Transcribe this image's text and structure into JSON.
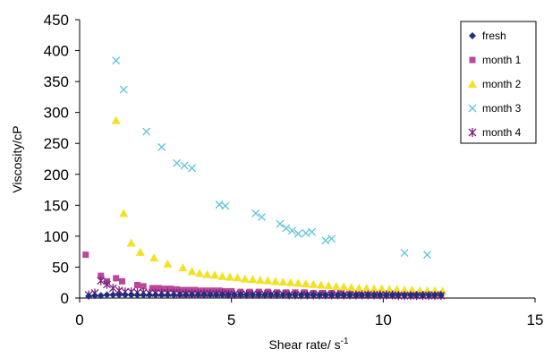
{
  "chart_data": {
    "type": "scatter",
    "xlabel": "Shear rate/ s",
    "xlabel_sup": "-1",
    "ylabel": "Viscosity/cP",
    "xlim": [
      0,
      15
    ],
    "ylim": [
      0,
      450
    ],
    "xticks": [
      0,
      5,
      10,
      15
    ],
    "yticks": [
      0,
      50,
      100,
      150,
      200,
      250,
      300,
      350,
      400,
      450
    ],
    "grid": false,
    "legend_position": "top-right",
    "series": [
      {
        "name": "fresh",
        "marker": "diamond",
        "color": "#1F2F7A",
        "x": [
          0.3,
          0.5,
          0.7,
          0.9,
          1.1,
          1.3,
          1.5,
          1.7,
          1.9,
          2.1,
          2.3,
          2.5,
          2.7,
          2.9,
          3.1,
          3.3,
          3.5,
          3.7,
          3.9,
          4.1,
          4.3,
          4.5,
          4.7,
          4.9,
          5.1,
          5.3,
          5.5,
          5.7,
          5.9,
          6.1,
          6.3,
          6.5,
          6.7,
          6.9,
          7.1,
          7.3,
          7.5,
          7.7,
          7.9,
          8.1,
          8.3,
          8.5,
          8.7,
          8.9,
          9.1,
          9.3,
          9.5,
          9.7,
          9.9,
          10.1,
          10.3,
          10.5,
          10.7,
          10.9,
          11.1,
          11.3,
          11.5,
          11.7,
          11.9
        ],
        "y": [
          3,
          4,
          4,
          5,
          5,
          5,
          5,
          5,
          5,
          5,
          5,
          5,
          5,
          5,
          5,
          5,
          5,
          5,
          5,
          5,
          5,
          5,
          5,
          5,
          5,
          5,
          5,
          5,
          5,
          5,
          5,
          5,
          5,
          5,
          5,
          5,
          5,
          5,
          5,
          5,
          5,
          5,
          5,
          5,
          5,
          5,
          5,
          5,
          5,
          5,
          5,
          5,
          5,
          5,
          5,
          5,
          5,
          5,
          5
        ]
      },
      {
        "name": "month 1",
        "marker": "square",
        "color": "#B9479B",
        "x": [
          0.2,
          0.7,
          0.9,
          1.2,
          1.4,
          1.9,
          2.1,
          2.4,
          2.6,
          2.8,
          3.0,
          3.2,
          3.4,
          3.6,
          3.8,
          4.0,
          4.2,
          4.4,
          4.6,
          4.8,
          5.0,
          5.3,
          5.6,
          5.9,
          6.2,
          6.5,
          6.8,
          7.1,
          7.4,
          7.7,
          8.0,
          8.3,
          8.6,
          8.9,
          9.2,
          9.5,
          9.8,
          10.1,
          10.4,
          10.7,
          11.0,
          11.3,
          11.6,
          11.9
        ],
        "y": [
          70,
          36,
          27,
          32,
          27,
          21,
          19,
          16,
          16,
          15,
          15,
          14,
          13,
          13,
          13,
          12,
          12,
          12,
          12,
          11,
          11,
          10,
          10,
          10,
          10,
          9,
          9,
          9,
          9,
          8,
          8,
          8,
          8,
          8,
          7,
          7,
          7,
          7,
          7,
          7,
          6,
          6,
          6,
          6
        ]
      },
      {
        "name": "month 2",
        "marker": "triangle",
        "color": "#F2E226",
        "x": [
          1.2,
          1.45,
          1.7,
          2.0,
          2.45,
          2.9,
          3.4,
          3.7,
          3.95,
          4.2,
          4.45,
          4.7,
          4.95,
          5.2,
          5.45,
          5.7,
          5.95,
          6.2,
          6.45,
          6.7,
          6.95,
          7.2,
          7.45,
          7.7,
          7.95,
          8.2,
          8.45,
          8.7,
          8.95,
          9.2,
          9.45,
          9.7,
          9.95,
          10.2,
          10.45,
          10.7,
          10.95,
          11.2,
          11.45,
          11.7,
          11.95
        ],
        "y": [
          287,
          137,
          89,
          74,
          65,
          55,
          49,
          43,
          40,
          38,
          37,
          35,
          34,
          33,
          31,
          30,
          29,
          28,
          27,
          26,
          25,
          24,
          23,
          22,
          21,
          20,
          19,
          18,
          17,
          16,
          16,
          15,
          15,
          14,
          14,
          13,
          13,
          12,
          12,
          12,
          11
        ]
      },
      {
        "name": "month 3",
        "marker": "x",
        "color": "#5BC3D9",
        "x": [
          1.2,
          1.45,
          2.2,
          2.7,
          3.2,
          3.45,
          3.7,
          4.6,
          4.8,
          5.8,
          6.0,
          6.6,
          6.8,
          7.0,
          7.2,
          7.45,
          7.65,
          8.1,
          8.3,
          10.7,
          11.45
        ],
        "y": [
          384,
          337,
          269,
          244,
          218,
          214,
          210,
          151,
          149,
          137,
          131,
          120,
          113,
          109,
          104,
          105,
          107,
          93,
          96,
          73,
          70
        ]
      },
      {
        "name": "month 4",
        "marker": "star",
        "color": "#7A1F7A",
        "x": [
          0.3,
          0.5,
          0.7,
          0.9,
          1.1,
          1.3,
          1.5,
          1.7,
          1.9,
          2.1,
          2.3,
          2.5,
          2.7,
          2.9,
          3.1,
          3.3,
          3.5,
          3.7,
          3.9,
          4.1,
          4.3,
          4.5,
          4.7,
          4.9,
          5.1,
          5.3,
          5.5,
          5.7,
          5.9,
          6.1,
          6.3,
          6.5,
          6.7,
          6.9,
          7.1,
          7.3,
          7.5,
          7.7,
          7.9,
          8.1,
          8.3,
          8.5,
          8.7,
          8.9,
          9.1,
          9.3,
          9.5,
          9.7,
          9.9,
          10.1,
          10.3,
          10.5,
          10.7,
          10.9,
          11.1,
          11.3,
          11.5,
          11.7,
          11.9
        ],
        "y": [
          5,
          8,
          28,
          22,
          16,
          12,
          10,
          10,
          9,
          9,
          8,
          8,
          8,
          8,
          8,
          7,
          7,
          7,
          7,
          7,
          7,
          7,
          7,
          6,
          6,
          6,
          6,
          6,
          6,
          6,
          6,
          6,
          6,
          5,
          5,
          5,
          5,
          5,
          5,
          5,
          5,
          5,
          5,
          5,
          5,
          5,
          5,
          5,
          5,
          5,
          5,
          4,
          4,
          4,
          4,
          4,
          4,
          4,
          4
        ]
      }
    ]
  }
}
